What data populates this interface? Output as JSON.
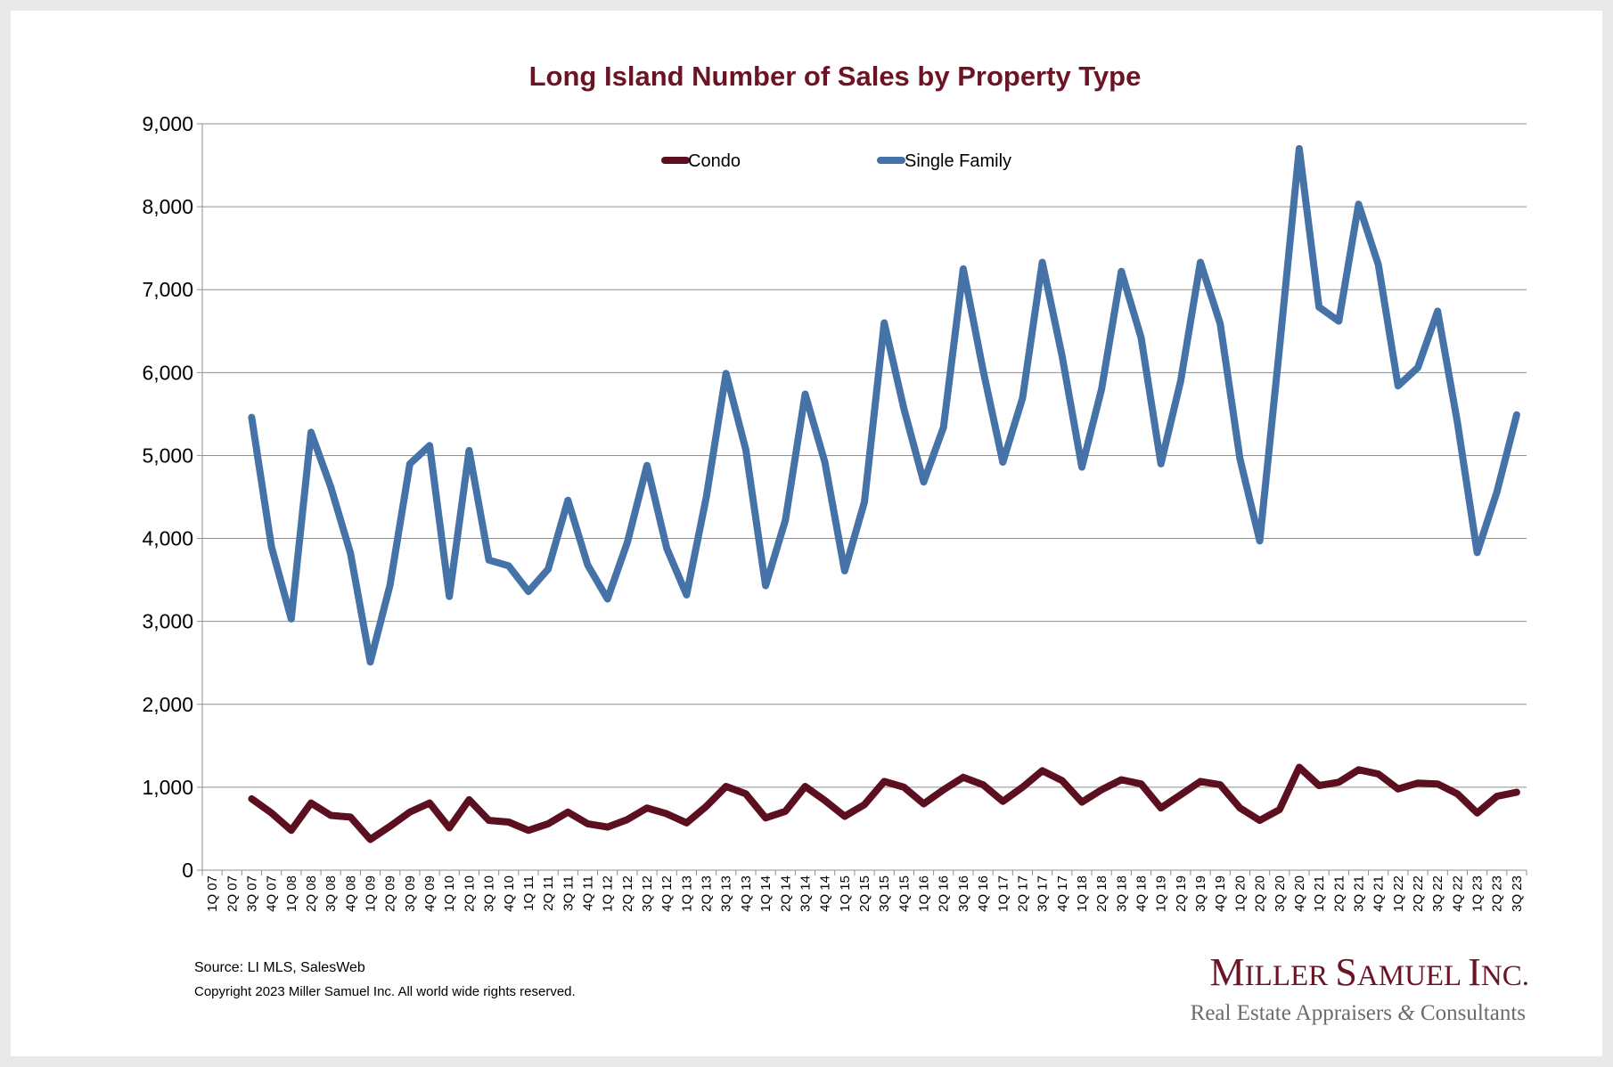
{
  "chart_data": {
    "type": "line",
    "title": "Long Island Number of Sales by Property Type",
    "xlabel": "",
    "ylabel": "",
    "ylim": [
      0,
      9000
    ],
    "yticks": [
      0,
      1000,
      2000,
      3000,
      4000,
      5000,
      6000,
      7000,
      8000,
      9000
    ],
    "ytick_labels": [
      "0",
      "1,000",
      "2,000",
      "3,000",
      "4,000",
      "5,000",
      "6,000",
      "7,000",
      "8,000",
      "9,000"
    ],
    "grid": true,
    "legend_position": "top",
    "categories": [
      "1Q 07",
      "2Q 07",
      "3Q 07",
      "4Q 07",
      "1Q 08",
      "2Q 08",
      "3Q 08",
      "4Q 08",
      "1Q 09",
      "2Q 09",
      "3Q 09",
      "4Q 09",
      "1Q 10",
      "2Q 10",
      "3Q 10",
      "4Q 10",
      "1Q 11",
      "2Q 11",
      "3Q 11",
      "4Q 11",
      "1Q 12",
      "2Q 12",
      "3Q 12",
      "4Q 12",
      "1Q 13",
      "2Q 13",
      "3Q 13",
      "4Q 13",
      "1Q 14",
      "2Q 14",
      "3Q 14",
      "4Q 14",
      "1Q 15",
      "2Q 15",
      "3Q 15",
      "4Q 15",
      "1Q 16",
      "2Q 16",
      "3Q 16",
      "4Q 16",
      "1Q 17",
      "2Q 17",
      "3Q 17",
      "4Q 17",
      "1Q 18",
      "2Q 18",
      "3Q 18",
      "4Q 18",
      "1Q 19",
      "2Q 19",
      "3Q 19",
      "4Q 19",
      "1Q 20",
      "2Q 20",
      "3Q 20",
      "4Q 20",
      "1Q 21",
      "2Q 21",
      "3Q 21",
      "4Q 21",
      "1Q 22",
      "2Q 22",
      "3Q 22",
      "4Q 22",
      "1Q 23",
      "2Q 23",
      "3Q 23"
    ],
    "series": [
      {
        "name": "Condo",
        "color": "#5c0f1f",
        "values": [
          null,
          null,
          860,
          690,
          480,
          810,
          660,
          640,
          370,
          530,
          700,
          810,
          510,
          850,
          600,
          580,
          480,
          560,
          700,
          560,
          520,
          610,
          750,
          680,
          570,
          770,
          1010,
          920,
          630,
          710,
          1010,
          840,
          650,
          790,
          1070,
          1000,
          800,
          970,
          1120,
          1030,
          830,
          1000,
          1200,
          1080,
          820,
          970,
          1090,
          1040,
          750,
          910,
          1070,
          1030,
          750,
          600,
          730,
          1240,
          1020,
          1060,
          1210,
          1160,
          980,
          1050,
          1040,
          920,
          690,
          890,
          940
        ]
      },
      {
        "name": "Single Family",
        "color": "#4572a7",
        "values": [
          null,
          null,
          5460,
          3900,
          3030,
          5280,
          4620,
          3820,
          2510,
          3440,
          4900,
          5120,
          3300,
          5060,
          3740,
          3670,
          3360,
          3630,
          4460,
          3680,
          3270,
          3950,
          4880,
          3880,
          3320,
          4500,
          5990,
          5070,
          3430,
          4220,
          5740,
          4920,
          3610,
          4440,
          6600,
          5560,
          4680,
          5340,
          7250,
          6030,
          4920,
          5690,
          7330,
          6200,
          4860,
          5800,
          7220,
          6420,
          4900,
          5900,
          7330,
          6590,
          4960,
          3970,
          6300,
          8700,
          6790,
          6620,
          8030,
          7300,
          5840,
          6060,
          6740,
          5400,
          3830,
          4560,
          5490
        ]
      }
    ]
  },
  "footer": {
    "source": "Source:  LI MLS, SalesWeb",
    "copyright": "Copyright 2023 Miller Samuel Inc.  All world wide rights reserved."
  },
  "logo": {
    "main": "Miller Samuel Inc.",
    "sub": "Real Estate Appraisers & Consultants"
  }
}
